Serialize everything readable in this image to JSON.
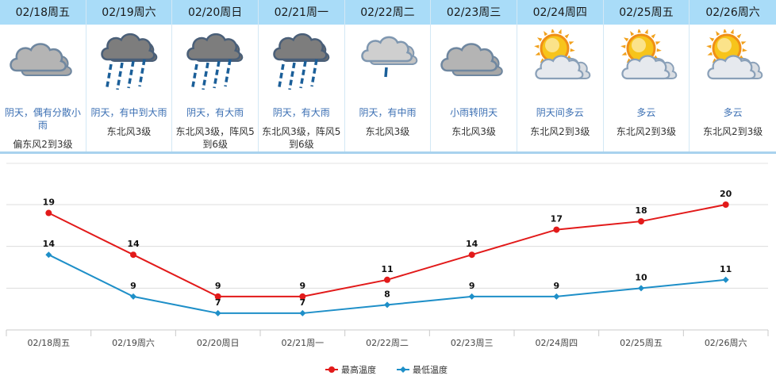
{
  "colors": {
    "header_bg": "#a9dcf8",
    "desc_text": "#3b6fb3",
    "high_series": "#e21a1a",
    "low_series": "#1e8fc8"
  },
  "days": [
    {
      "date": "02/18周五",
      "icon": "cloudy-icon",
      "desc": "阴天，偶有分散小雨",
      "wind": "偏东风2到3级",
      "wind_line2": ""
    },
    {
      "date": "02/19周六",
      "icon": "heavy-rain-icon",
      "desc": "阴天，有中到大雨",
      "wind": "东北风3级",
      "wind_line2": ""
    },
    {
      "date": "02/20周日",
      "icon": "heavy-rain-icon",
      "desc": "阴天，有大雨",
      "wind": "东北风3级，阵风5",
      "wind_line2": "到6级"
    },
    {
      "date": "02/21周一",
      "icon": "heavy-rain-icon",
      "desc": "阴天，有大雨",
      "wind": "东北风3级，阵风5",
      "wind_line2": "到6级"
    },
    {
      "date": "02/22周二",
      "icon": "light-rain-icon",
      "desc": "阴天，有中雨",
      "wind": "东北风3级",
      "wind_line2": ""
    },
    {
      "date": "02/23周三",
      "icon": "cloudy-icon",
      "desc": "小雨转阴天",
      "wind": "东北风3级",
      "wind_line2": ""
    },
    {
      "date": "02/24周四",
      "icon": "partly-cloudy-icon",
      "desc": "阴天间多云",
      "wind": "东北风2到3级",
      "wind_line2": ""
    },
    {
      "date": "02/25周五",
      "icon": "partly-cloudy-icon",
      "desc": "多云",
      "wind": "东北风2到3级",
      "wind_line2": ""
    },
    {
      "date": "02/26周六",
      "icon": "partly-cloudy-icon",
      "desc": "多云",
      "wind": "东北风2到3级",
      "wind_line2": ""
    }
  ],
  "chart_data": {
    "type": "line",
    "categories": [
      "02/18周五",
      "02/19周六",
      "02/20周日",
      "02/21周一",
      "02/22周二",
      "02/23周三",
      "02/24周四",
      "02/25周五",
      "02/26周六"
    ],
    "series": [
      {
        "name": "最高温度",
        "color": "#e21a1a",
        "marker": "circle",
        "values": [
          19,
          14,
          9,
          9,
          11,
          14,
          17,
          18,
          20
        ]
      },
      {
        "name": "最低温度",
        "color": "#1e8fc8",
        "marker": "diamond",
        "values": [
          14,
          9,
          7,
          7,
          8,
          9,
          9,
          10,
          11
        ]
      }
    ],
    "ylim": [
      5,
      20
    ],
    "gridlines": [
      5,
      10,
      15,
      20
    ],
    "title": "",
    "xlabel": "",
    "ylabel": "",
    "grid": true,
    "legend": "bottom-center"
  }
}
